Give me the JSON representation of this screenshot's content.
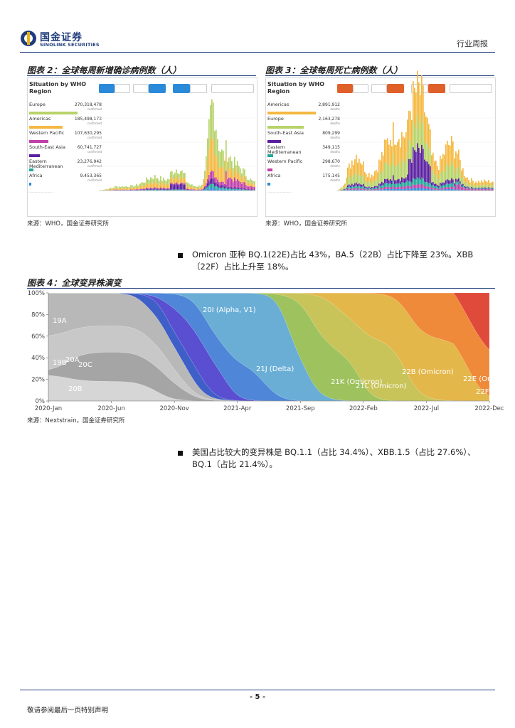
{
  "header": {
    "logo_cn": "国金证券",
    "logo_en": "SINOLINK SECURITIES",
    "report_type": "行业周报"
  },
  "figure2": {
    "title": "图表 2：全球每周新增确诊病例数（人）",
    "panel_title_line1": "Situation by WHO",
    "panel_title_line2": "Region",
    "regions": [
      {
        "name": "Europe",
        "value": "270,318,478",
        "sub": "confirmed",
        "color": "#b6d36a",
        "share": 1.0
      },
      {
        "name": "Americas",
        "value": "185,498,173",
        "sub": "confirmed",
        "color": "#f4b942",
        "share": 0.69
      },
      {
        "name": "Western Pacific",
        "value": "107,630,295",
        "sub": "confirmed",
        "color": "#c13fa8",
        "share": 0.4
      },
      {
        "name": "South-East Asia",
        "value": "60,741,727",
        "sub": "confirmed",
        "color": "#5a1fa0",
        "share": 0.22
      },
      {
        "name": "Eastern Mediterranean",
        "value": "23,276,942",
        "sub": "confirmed",
        "color": "#1fa89a",
        "share": 0.09
      },
      {
        "name": "Africa",
        "value": "9,453,365",
        "sub": "confirmed",
        "color": "#2a8ad9",
        "share": 0.035
      }
    ],
    "source": "来源：WHO，国金证券研究所"
  },
  "figure3": {
    "title": "图表 3：全球每周死亡病例数（人）",
    "panel_title_line1": "Situation by WHO",
    "panel_title_line2": "Region",
    "regions": [
      {
        "name": "Americas",
        "value": "2,891,912",
        "sub": "deaths",
        "color": "#f4b942",
        "share": 1.0
      },
      {
        "name": "Europe",
        "value": "2,163,278",
        "sub": "deaths",
        "color": "#b6d36a",
        "share": 0.75
      },
      {
        "name": "South-East Asia",
        "value": "809,299",
        "sub": "deaths",
        "color": "#5a1fa0",
        "share": 0.28
      },
      {
        "name": "Eastern Mediterranean",
        "value": "349,115",
        "sub": "deaths",
        "color": "#1fa89a",
        "share": 0.12
      },
      {
        "name": "Western Pacific",
        "value": "298,670",
        "sub": "deaths",
        "color": "#c13fa8",
        "share": 0.1
      },
      {
        "name": "Africa",
        "value": "175,145",
        "sub": "deaths",
        "color": "#2a8ad9",
        "share": 0.06
      }
    ],
    "source": "来源：WHO，国金证券研究所"
  },
  "bullets": {
    "b1_line1": "Omicron 亚种 BQ.1(22E)占比 43%，BA.5（22B）占比下降至 23%。XBB",
    "b1_line2": "（22F）占比上升至 18%。",
    "b2_line1": "美国占比较大的变异株是 BQ.1.1（占比 34.4%）、XBB.1.5（占比 27.6%）、",
    "b2_line2": "BQ.1（占比 21.4%）。"
  },
  "figure4": {
    "title": "图表 4：全球变异株演变",
    "source": "来源：Nextstrain，国金证券研究所",
    "chart_data": {
      "type": "area",
      "title": "",
      "y_ticks": [
        "100%",
        "80%",
        "60%",
        "40%",
        "20%",
        "0%"
      ],
      "x_ticks": [
        "2020-Jan",
        "2020-Jun",
        "2020-Nov",
        "2021-Apr",
        "2021-Sep",
        "2022-Feb",
        "2022-Jul",
        "2022-Dec"
      ],
      "ylim": [
        0,
        100
      ],
      "series_labels": [
        "19A",
        "20A",
        "19B",
        "20C",
        "20B",
        "20I (Alpha, V1)",
        "21J (Delta)",
        "21K (Omicron)",
        "21L (Omicron)",
        "22B (Omicron)",
        "22E (Or",
        "22F"
      ]
    }
  },
  "footer": {
    "page": "- 5 -",
    "disclaimer": "敬请参阅最后一页特别声明"
  }
}
